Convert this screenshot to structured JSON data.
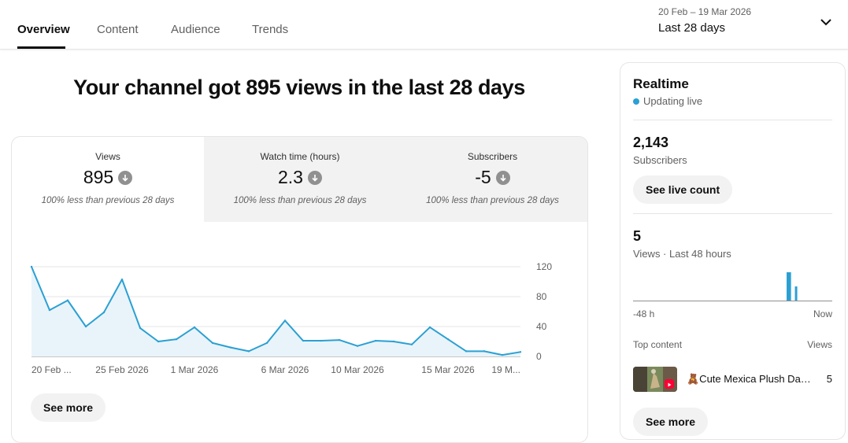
{
  "tabs": [
    {
      "label": "Overview",
      "active": true
    },
    {
      "label": "Content",
      "active": false
    },
    {
      "label": "Audience",
      "active": false
    },
    {
      "label": "Trends",
      "active": false
    }
  ],
  "date_picker": {
    "range": "20 Feb – 19 Mar 2026",
    "label": "Last 28 days",
    "icon": "chevron-down-icon"
  },
  "headline": "Your channel got 895 views in the last 28 days",
  "metrics": [
    {
      "label": "Views",
      "value": "895",
      "change": "100% less than previous 28 days",
      "trend_icon": "arrow-down-icon"
    },
    {
      "label": "Watch time (hours)",
      "value": "2.3",
      "change": "100% less than previous 28 days",
      "trend_icon": "arrow-down-icon"
    },
    {
      "label": "Subscribers",
      "value": "-5",
      "change": "100% less than previous 28 days",
      "trend_icon": "arrow-down-icon"
    }
  ],
  "chart_data": {
    "type": "area",
    "series": [
      {
        "values": [
          120,
          62,
          75,
          40,
          59,
          103,
          38,
          20,
          23,
          39,
          18,
          12,
          7,
          18,
          48,
          21,
          21,
          22,
          14,
          21,
          20,
          16,
          39,
          23,
          7,
          7,
          2,
          6
        ]
      }
    ],
    "x_tick_labels": [
      "20 Feb ...",
      "25 Feb 2026",
      "1 Mar 2026",
      "6 Mar 2026",
      "10 Mar 2026",
      "15 Mar 2026",
      "19 M..."
    ],
    "y_tick_labels": [
      "120",
      "80",
      "40",
      "0"
    ],
    "ylim": [
      0,
      120
    ],
    "grid": true,
    "line_color": "#2ba0d3",
    "fill_color": "#e9f4fa"
  },
  "see_more_label": "See more",
  "realtime": {
    "title": "Realtime",
    "live_label": "Updating live",
    "live_color": "#2ba0d3",
    "subscribers_value": "2,143",
    "subscribers_label": "Subscribers",
    "live_count_button": "See live count",
    "views_value": "5",
    "views_label": "Views · Last 48 hours",
    "mini_chart": {
      "bars": [
        {
          "hours_ago": 11,
          "views": 2
        },
        {
          "hours_ago": 10.5,
          "views": 2
        },
        {
          "hours_ago": 9,
          "views": 1
        }
      ],
      "ymax": 2,
      "bar_color": "#2ba0d3"
    },
    "axis_start": "-48 h",
    "axis_end": "Now",
    "top_content_label": "Top content",
    "views_column_label": "Views",
    "top_content": [
      {
        "title": "🧸Cute Mexica Plush Dance🧸🎶",
        "views": "5",
        "thumbnail": "video-thumbnail",
        "badge_icon": "shorts-icon"
      }
    ],
    "see_more_label": "See more"
  }
}
